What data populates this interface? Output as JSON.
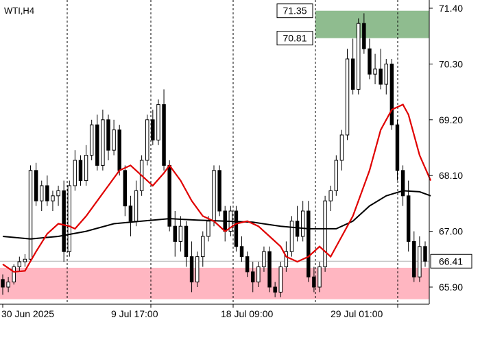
{
  "symbol_label": "WTI,H4",
  "chart_data": {
    "type": "candlestick",
    "title": "WTI,H4",
    "y_ticks": [
      71.4,
      70.3,
      69.2,
      68.1,
      67.0,
      65.9
    ],
    "x_ticks": [
      "30 Jun 2025",
      "9 Jul 17:00",
      "18 Jul 09:00",
      "29 Jul 01:00"
    ],
    "last_price": 66.41,
    "zones": [
      {
        "name": "resistance-zone",
        "from": 70.81,
        "to": 71.35,
        "color": "#8fbc8f",
        "labels": [
          "71.35",
          "70.81"
        ]
      },
      {
        "name": "support-zone",
        "from": 65.66,
        "to": 66.28,
        "color": "#ffb6c1"
      }
    ],
    "ma_fast_color": "#e00000",
    "ma_slow_color": "#000000",
    "candle_color": "#000000",
    "grid": "vertical-dashed",
    "ma_fast": [
      [
        0,
        66.35
      ],
      [
        2,
        66.2
      ],
      [
        4,
        66.22
      ],
      [
        6,
        66.6
      ],
      [
        8,
        66.95
      ],
      [
        10,
        67.15
      ],
      [
        12,
        67.1
      ],
      [
        13,
        67.05
      ],
      [
        15,
        67.3
      ],
      [
        17,
        67.6
      ],
      [
        19,
        67.9
      ],
      [
        21,
        68.2
      ],
      [
        23,
        68.3
      ],
      [
        25,
        68.1
      ],
      [
        27,
        67.9
      ],
      [
        29,
        68.15
      ],
      [
        30,
        68.3
      ],
      [
        32,
        68.0
      ],
      [
        34,
        67.6
      ],
      [
        36,
        67.3
      ],
      [
        38,
        67.2
      ],
      [
        40,
        67.0
      ],
      [
        42,
        67.15
      ],
      [
        44,
        67.2
      ],
      [
        46,
        67.1
      ],
      [
        48,
        66.9
      ],
      [
        50,
        66.7
      ],
      [
        51,
        66.5
      ],
      [
        53,
        66.4
      ],
      [
        55,
        66.5
      ],
      [
        57,
        66.7
      ],
      [
        59,
        66.5
      ],
      [
        61,
        66.9
      ],
      [
        63,
        67.3
      ],
      [
        64,
        67.6
      ],
      [
        66,
        68.2
      ],
      [
        68,
        69.0
      ],
      [
        70,
        69.4
      ],
      [
        72,
        69.5
      ],
      [
        73,
        69.3
      ],
      [
        75,
        68.5
      ],
      [
        77,
        68.0
      ]
    ],
    "ma_slow": [
      [
        0,
        66.9
      ],
      [
        5,
        66.85
      ],
      [
        10,
        66.9
      ],
      [
        15,
        67.0
      ],
      [
        20,
        67.15
      ],
      [
        25,
        67.2
      ],
      [
        30,
        67.25
      ],
      [
        35,
        67.22
      ],
      [
        40,
        67.2
      ],
      [
        45,
        67.18
      ],
      [
        50,
        67.1
      ],
      [
        55,
        67.05
      ],
      [
        60,
        67.05
      ],
      [
        63,
        67.2
      ],
      [
        66,
        67.5
      ],
      [
        69,
        67.7
      ],
      [
        72,
        67.8
      ],
      [
        75,
        67.78
      ],
      [
        77,
        67.7
      ]
    ],
    "candles": [
      [
        66.05,
        66.15,
        65.75,
        65.9
      ],
      [
        65.9,
        66.1,
        65.8,
        66.0
      ],
      [
        66.0,
        66.35,
        65.95,
        66.3
      ],
      [
        66.3,
        66.5,
        66.2,
        66.4
      ],
      [
        66.4,
        66.55,
        66.3,
        66.45
      ],
      [
        66.45,
        68.3,
        66.4,
        68.2
      ],
      [
        68.2,
        68.35,
        67.5,
        67.6
      ],
      [
        67.6,
        68.0,
        67.4,
        67.9
      ],
      [
        67.9,
        68.1,
        67.5,
        67.6
      ],
      [
        67.6,
        67.8,
        67.4,
        67.7
      ],
      [
        67.7,
        67.9,
        67.5,
        67.8
      ],
      [
        67.8,
        68.0,
        66.4,
        66.6
      ],
      [
        66.6,
        68.0,
        66.5,
        67.9
      ],
      [
        67.9,
        68.6,
        67.8,
        68.4
      ],
      [
        68.4,
        68.5,
        67.9,
        68.0
      ],
      [
        68.0,
        68.7,
        67.9,
        68.5
      ],
      [
        68.5,
        69.2,
        68.4,
        69.1
      ],
      [
        69.1,
        69.3,
        68.2,
        68.3
      ],
      [
        68.3,
        69.4,
        68.2,
        69.2
      ],
      [
        69.2,
        69.3,
        68.4,
        68.6
      ],
      [
        68.6,
        69.2,
        68.5,
        69.0
      ],
      [
        69.0,
        69.1,
        68.1,
        68.2
      ],
      [
        68.2,
        68.3,
        67.3,
        67.5
      ],
      [
        67.5,
        67.7,
        66.9,
        67.2
      ],
      [
        67.2,
        68.0,
        67.1,
        67.8
      ],
      [
        67.8,
        68.5,
        67.7,
        68.4
      ],
      [
        68.4,
        69.3,
        68.3,
        69.2
      ],
      [
        69.2,
        69.4,
        68.7,
        68.8
      ],
      [
        68.8,
        69.6,
        68.7,
        69.5
      ],
      [
        69.5,
        69.8,
        68.2,
        68.3
      ],
      [
        68.3,
        68.4,
        67.0,
        67.1
      ],
      [
        67.1,
        67.4,
        66.5,
        66.8
      ],
      [
        66.8,
        67.3,
        66.6,
        67.1
      ],
      [
        67.1,
        67.2,
        66.3,
        66.5
      ],
      [
        66.5,
        66.8,
        65.8,
        66.0
      ],
      [
        66.0,
        66.6,
        65.9,
        66.5
      ],
      [
        66.5,
        67.0,
        66.3,
        66.9
      ],
      [
        66.9,
        67.3,
        66.8,
        67.2
      ],
      [
        67.2,
        68.3,
        67.1,
        68.2
      ],
      [
        68.2,
        68.3,
        67.3,
        67.4
      ],
      [
        67.4,
        67.5,
        66.8,
        67.0
      ],
      [
        67.0,
        67.5,
        66.9,
        67.4
      ],
      [
        67.4,
        67.5,
        66.6,
        66.7
      ],
      [
        66.7,
        66.9,
        66.4,
        66.5
      ],
      [
        66.5,
        66.6,
        66.1,
        66.2
      ],
      [
        66.2,
        66.4,
        65.8,
        66.0
      ],
      [
        66.0,
        66.4,
        65.9,
        66.3
      ],
      [
        66.3,
        66.7,
        66.2,
        66.6
      ],
      [
        66.6,
        66.7,
        65.8,
        65.9
      ],
      [
        65.9,
        66.0,
        65.7,
        65.8
      ],
      [
        65.8,
        66.4,
        65.7,
        66.3
      ],
      [
        66.3,
        66.8,
        66.2,
        66.6
      ],
      [
        66.6,
        67.3,
        66.5,
        67.2
      ],
      [
        67.2,
        67.5,
        66.8,
        66.9
      ],
      [
        66.9,
        67.6,
        66.8,
        67.4
      ],
      [
        67.4,
        67.6,
        66.0,
        66.1
      ],
      [
        66.1,
        66.3,
        65.8,
        65.9
      ],
      [
        65.9,
        66.4,
        65.8,
        66.3
      ],
      [
        66.3,
        67.7,
        66.2,
        67.6
      ],
      [
        67.6,
        67.9,
        67.4,
        67.8
      ],
      [
        67.8,
        68.5,
        67.7,
        68.4
      ],
      [
        68.4,
        69.0,
        68.2,
        68.9
      ],
      [
        68.9,
        70.6,
        68.8,
        70.4
      ],
      [
        70.4,
        70.8,
        69.7,
        69.8
      ],
      [
        69.8,
        71.2,
        69.7,
        71.1
      ],
      [
        71.1,
        71.3,
        70.5,
        70.6
      ],
      [
        70.6,
        70.8,
        70.0,
        70.1
      ],
      [
        70.1,
        70.5,
        69.9,
        70.2
      ],
      [
        70.2,
        70.6,
        69.8,
        69.9
      ],
      [
        69.9,
        70.4,
        69.7,
        70.3
      ],
      [
        70.3,
        70.4,
        69.0,
        69.1
      ],
      [
        69.1,
        69.2,
        68.0,
        68.2
      ],
      [
        68.2,
        68.3,
        67.5,
        67.7
      ],
      [
        67.7,
        68.0,
        66.6,
        66.8
      ],
      [
        66.8,
        67.0,
        66.0,
        66.1
      ],
      [
        66.1,
        66.9,
        66.0,
        66.7
      ],
      [
        66.7,
        66.8,
        66.3,
        66.41
      ]
    ]
  }
}
